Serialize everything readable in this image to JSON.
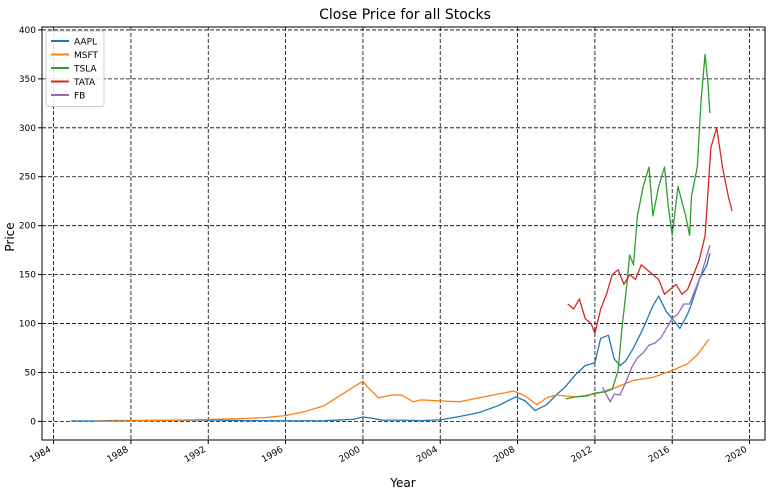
{
  "chart_data": {
    "type": "line",
    "title": "Close Price for all Stocks",
    "xlabel": "Year",
    "ylabel": "Price",
    "xlim": [
      1983.4,
      2020.8
    ],
    "ylim": [
      -19,
      403
    ],
    "x_ticks": [
      1984,
      1988,
      1992,
      1996,
      2000,
      2004,
      2008,
      2012,
      2016,
      2020
    ],
    "y_ticks": [
      0,
      50,
      100,
      150,
      200,
      250,
      300,
      350,
      400
    ],
    "grid": true,
    "legend_position": "top-left",
    "series": [
      {
        "name": "AAPL",
        "color": "#1f77b4",
        "points": [
          [
            1984.9,
            0.5
          ],
          [
            1986,
            0.4
          ],
          [
            1987,
            0.9
          ],
          [
            1988,
            0.9
          ],
          [
            1990,
            1.1
          ],
          [
            1992,
            1.4
          ],
          [
            1994,
            0.8
          ],
          [
            1996,
            0.6
          ],
          [
            1998,
            0.7
          ],
          [
            1999.5,
            2
          ],
          [
            2000.0,
            4.5
          ],
          [
            2000.4,
            3.5
          ],
          [
            2001,
            1.3
          ],
          [
            2002,
            1.3
          ],
          [
            2003,
            0.8
          ],
          [
            2004,
            1.5
          ],
          [
            2005,
            5
          ],
          [
            2006,
            9
          ],
          [
            2007,
            16
          ],
          [
            2007.9,
            25
          ],
          [
            2008.4,
            21
          ],
          [
            2008.9,
            11
          ],
          [
            2009.5,
            17
          ],
          [
            2010,
            27
          ],
          [
            2010.5,
            36
          ],
          [
            2011,
            48
          ],
          [
            2011.5,
            57
          ],
          [
            2012,
            60
          ],
          [
            2012.3,
            85
          ],
          [
            2012.7,
            88
          ],
          [
            2013,
            64
          ],
          [
            2013.3,
            57
          ],
          [
            2013.6,
            62
          ],
          [
            2014,
            75
          ],
          [
            2014.5,
            95
          ],
          [
            2015,
            118
          ],
          [
            2015.3,
            128
          ],
          [
            2015.7,
            112
          ],
          [
            2016,
            105
          ],
          [
            2016.4,
            95
          ],
          [
            2016.8,
            110
          ],
          [
            2017,
            120
          ],
          [
            2017.4,
            145
          ],
          [
            2017.8,
            160
          ],
          [
            2017.95,
            172
          ]
        ]
      },
      {
        "name": "MSFT",
        "color": "#ff7f0e",
        "points": [
          [
            1986.2,
            0.1
          ],
          [
            1988,
            0.6
          ],
          [
            1990,
            1
          ],
          [
            1992,
            2
          ],
          [
            1994,
            3
          ],
          [
            1995,
            4
          ],
          [
            1996,
            6
          ],
          [
            1997,
            10
          ],
          [
            1998,
            16
          ],
          [
            1998.7,
            25
          ],
          [
            1999.5,
            35
          ],
          [
            2000.0,
            41
          ],
          [
            2000.2,
            36
          ],
          [
            2000.8,
            24
          ],
          [
            2001.5,
            27
          ],
          [
            2002,
            27
          ],
          [
            2002.6,
            20
          ],
          [
            2003,
            22
          ],
          [
            2004,
            21
          ],
          [
            2005,
            20
          ],
          [
            2006,
            24
          ],
          [
            2007,
            28
          ],
          [
            2007.8,
            31
          ],
          [
            2008.4,
            26
          ],
          [
            2009.0,
            17
          ],
          [
            2009.5,
            24
          ],
          [
            2010,
            27
          ],
          [
            2011,
            25
          ],
          [
            2012,
            28
          ],
          [
            2013,
            34
          ],
          [
            2014,
            42
          ],
          [
            2015,
            45
          ],
          [
            2016,
            52
          ],
          [
            2016.8,
            59
          ],
          [
            2017.3,
            68
          ],
          [
            2017.9,
            84
          ]
        ]
      },
      {
        "name": "TSLA",
        "color": "#2ca02c",
        "points": [
          [
            2010.5,
            23
          ],
          [
            2011,
            25
          ],
          [
            2011.6,
            26
          ],
          [
            2012,
            29
          ],
          [
            2012.5,
            30
          ],
          [
            2012.9,
            33
          ],
          [
            2013.2,
            52
          ],
          [
            2013.4,
            95
          ],
          [
            2013.6,
            130
          ],
          [
            2013.8,
            170
          ],
          [
            2014.0,
            160
          ],
          [
            2014.2,
            210
          ],
          [
            2014.5,
            240
          ],
          [
            2014.8,
            260
          ],
          [
            2015.0,
            210
          ],
          [
            2015.3,
            240
          ],
          [
            2015.6,
            260
          ],
          [
            2015.8,
            220
          ],
          [
            2016.0,
            190
          ],
          [
            2016.3,
            240
          ],
          [
            2016.7,
            210
          ],
          [
            2016.9,
            190
          ],
          [
            2017.0,
            230
          ],
          [
            2017.3,
            260
          ],
          [
            2017.5,
            330
          ],
          [
            2017.7,
            375
          ],
          [
            2017.85,
            345
          ],
          [
            2017.95,
            315
          ]
        ]
      },
      {
        "name": "TATA",
        "color": "#d62728",
        "points": [
          [
            2010.6,
            120
          ],
          [
            2010.9,
            115
          ],
          [
            2011.2,
            125
          ],
          [
            2011.5,
            105
          ],
          [
            2011.8,
            100
          ],
          [
            2012.0,
            90
          ],
          [
            2012.3,
            115
          ],
          [
            2012.6,
            130
          ],
          [
            2012.9,
            150
          ],
          [
            2013.2,
            155
          ],
          [
            2013.5,
            140
          ],
          [
            2013.8,
            150
          ],
          [
            2014.1,
            145
          ],
          [
            2014.4,
            160
          ],
          [
            2014.7,
            155
          ],
          [
            2015.0,
            150
          ],
          [
            2015.3,
            145
          ],
          [
            2015.6,
            130
          ],
          [
            2015.9,
            135
          ],
          [
            2016.2,
            140
          ],
          [
            2016.5,
            130
          ],
          [
            2016.8,
            135
          ],
          [
            2017.1,
            150
          ],
          [
            2017.4,
            165
          ],
          [
            2017.7,
            190
          ],
          [
            2018.0,
            280
          ],
          [
            2018.3,
            300
          ],
          [
            2018.6,
            260
          ],
          [
            2018.9,
            230
          ],
          [
            2019.1,
            215
          ]
        ]
      },
      {
        "name": "FB",
        "color": "#9467bd",
        "points": [
          [
            2012.4,
            35
          ],
          [
            2012.6,
            27
          ],
          [
            2012.8,
            20
          ],
          [
            2013.0,
            28
          ],
          [
            2013.3,
            27
          ],
          [
            2013.6,
            40
          ],
          [
            2013.9,
            55
          ],
          [
            2014.2,
            65
          ],
          [
            2014.5,
            70
          ],
          [
            2014.8,
            78
          ],
          [
            2015.1,
            80
          ],
          [
            2015.4,
            85
          ],
          [
            2015.7,
            95
          ],
          [
            2016.0,
            105
          ],
          [
            2016.3,
            110
          ],
          [
            2016.6,
            120
          ],
          [
            2016.9,
            120
          ],
          [
            2017.2,
            135
          ],
          [
            2017.5,
            150
          ],
          [
            2017.8,
            170
          ],
          [
            2017.95,
            180
          ]
        ]
      }
    ]
  }
}
